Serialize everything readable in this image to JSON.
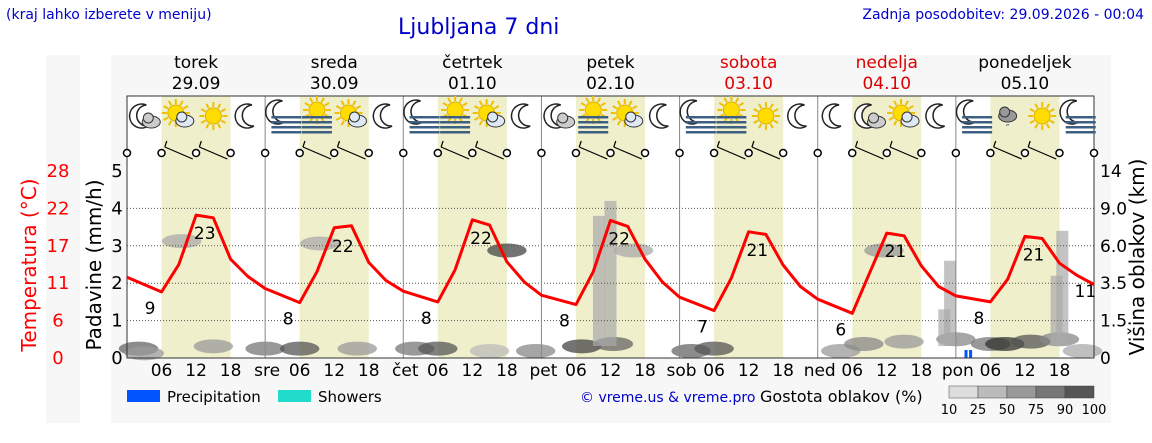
{
  "header": {
    "hint": "(kraj lahko izberete v meniju)",
    "title": "Ljubljana 7 dni",
    "updated": "Zadnja posodobitev: 29.09.2026 - 00:04"
  },
  "colors": {
    "background": "#f7f7f7",
    "day_band": "#efefcc",
    "temperature_line": "#ff0000",
    "weekend_text": "#dd0000",
    "precipitation": "#0055ff",
    "showers": "#22ddcc",
    "link": "#0000cc"
  },
  "days": [
    {
      "name": "torek",
      "date": "29.09",
      "weekend": false,
      "abbr": ""
    },
    {
      "name": "sreda",
      "date": "30.09",
      "weekend": false,
      "abbr": "sre"
    },
    {
      "name": "četrtek",
      "date": "01.10",
      "weekend": false,
      "abbr": "čet"
    },
    {
      "name": "petek",
      "date": "02.10",
      "weekend": false,
      "abbr": "pet"
    },
    {
      "name": "sobota",
      "date": "03.10",
      "weekend": true,
      "abbr": "sob"
    },
    {
      "name": "nedelja",
      "date": "04.10",
      "weekend": true,
      "abbr": "ned"
    },
    {
      "name": "ponedeljek",
      "date": "05.10",
      "weekend": false,
      "abbr": "pon"
    }
  ],
  "weather_icons": [
    "moon-cloud-icon",
    "sun-cloud-icon",
    "sun-icon",
    "moon-icon",
    "moon-fog-icon",
    "fog-icon",
    "sun-cloud-icon",
    "moon-icon",
    "moon-fog-icon",
    "fog-icon",
    "sun-cloud-icon",
    "moon-icon",
    "moon-cloud-icon",
    "fog-icon",
    "sun-cloud-icon",
    "moon-icon",
    "moon-fog-icon",
    "fog-icon",
    "sun-icon",
    "moon-icon",
    "moon-icon",
    "moon-cloud-icon",
    "sun-cloud-icon",
    "moon-icon",
    "moon-fog-icon",
    "rain-cloud-icon",
    "sun-icon",
    "moon-fog-icon"
  ],
  "legend": {
    "precipitation": "Precipitation",
    "showers": "Showers",
    "credit": "© vreme.us & vreme.pro",
    "cloud_density": "Gostota oblakov (%)",
    "cloud_scale": [
      "10",
      "25",
      "50",
      "75",
      "90",
      "100"
    ]
  },
  "chart_data": {
    "type": "line",
    "x_unit": "hour",
    "x_ticks": [
      "06",
      "12",
      "18"
    ],
    "left_axes": [
      {
        "label": "Temperatura (°C)",
        "ticks": [
          "28",
          "22",
          "17",
          "11",
          "6",
          "0"
        ],
        "color": "#ff0000"
      },
      {
        "label": "Padavine (mm/h)",
        "ticks": [
          "5",
          "4",
          "3",
          "2",
          "1",
          "0"
        ],
        "color": "#000000"
      }
    ],
    "right_axis": {
      "label": "Višina oblakov (km)",
      "ticks": [
        "14",
        "9.0",
        "6.0",
        "3.5",
        "1.5",
        "0"
      ]
    },
    "ylim": [
      0,
      28
    ],
    "series": [
      {
        "name": "Temperatura",
        "points": [
          [
            0,
            12.1
          ],
          [
            6,
            9.9
          ],
          [
            9,
            14
          ],
          [
            12,
            21.4
          ],
          [
            15,
            21
          ],
          [
            18,
            14.8
          ],
          [
            21,
            12.2
          ],
          [
            24,
            10.4
          ],
          [
            30,
            8.3
          ],
          [
            33,
            12.9
          ],
          [
            36,
            19.5
          ],
          [
            39,
            19.8
          ],
          [
            42,
            14.3
          ],
          [
            45,
            11.6
          ],
          [
            48,
            10
          ],
          [
            54,
            8.4
          ],
          [
            57,
            13.2
          ],
          [
            60,
            20.7
          ],
          [
            63,
            19.9
          ],
          [
            66,
            14.4
          ],
          [
            69,
            11.4
          ],
          [
            72,
            9.4
          ],
          [
            78,
            8
          ],
          [
            81,
            12.9
          ],
          [
            84,
            20.6
          ],
          [
            87,
            19.7
          ],
          [
            90,
            14.8
          ],
          [
            93,
            11.4
          ],
          [
            96,
            9.1
          ],
          [
            102,
            7.1
          ],
          [
            105,
            12
          ],
          [
            108,
            18.9
          ],
          [
            111,
            18.5
          ],
          [
            114,
            13.9
          ],
          [
            117,
            10.7
          ],
          [
            120,
            8.8
          ],
          [
            126,
            6.7
          ],
          [
            129,
            12.7
          ],
          [
            132,
            18.7
          ],
          [
            135,
            18.3
          ],
          [
            138,
            13.8
          ],
          [
            141,
            10.7
          ],
          [
            144,
            9.3
          ],
          [
            150,
            8.4
          ],
          [
            153,
            11.8
          ],
          [
            156,
            18.2
          ],
          [
            159,
            17.9
          ],
          [
            162,
            14.2
          ],
          [
            165,
            12.4
          ],
          [
            168,
            11
          ]
        ]
      }
    ],
    "labels": [
      {
        "hour": 4,
        "text": "9"
      },
      {
        "hour": 13.5,
        "text": "23"
      },
      {
        "hour": 28,
        "text": "8"
      },
      {
        "hour": 37.5,
        "text": "22"
      },
      {
        "hour": 52,
        "text": "8"
      },
      {
        "hour": 61.5,
        "text": "22"
      },
      {
        "hour": 76,
        "text": "8"
      },
      {
        "hour": 85.5,
        "text": "22"
      },
      {
        "hour": 100,
        "text": "7"
      },
      {
        "hour": 109.5,
        "text": "21"
      },
      {
        "hour": 124,
        "text": "6"
      },
      {
        "hour": 133.5,
        "text": "21"
      },
      {
        "hour": 148,
        "text": "8"
      },
      {
        "hour": 157.5,
        "text": "21"
      },
      {
        "hour": 166.5,
        "text": "11"
      }
    ]
  }
}
